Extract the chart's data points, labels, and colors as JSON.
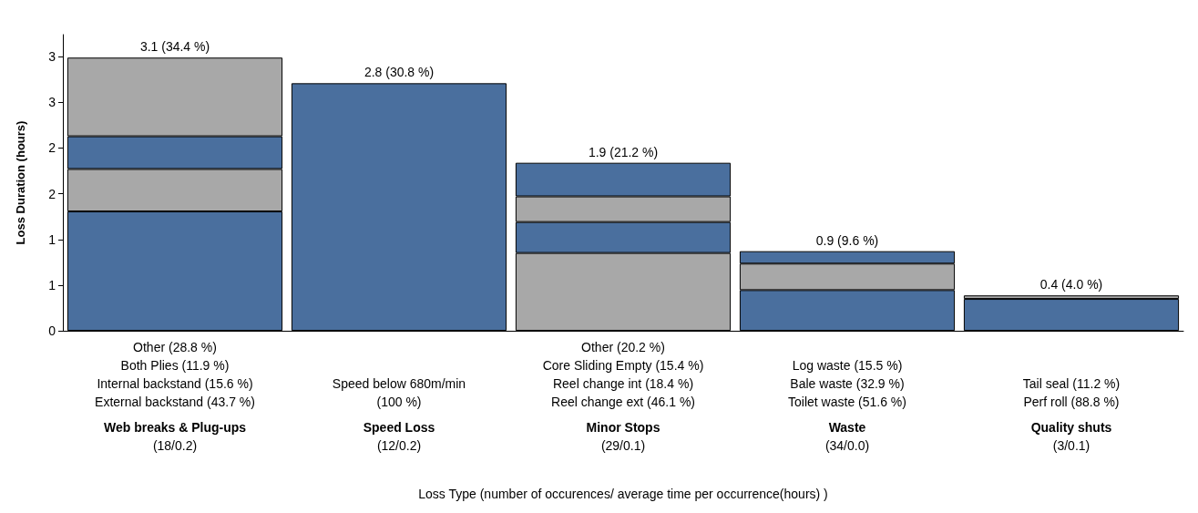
{
  "chart_data": {
    "type": "bar",
    "stacked": true,
    "ylabel": "Loss Duration (hours)",
    "xlabel": "Loss Type (number of occurences/ average time per occurrence(hours) )",
    "categories": [
      "Web breaks & Plug-ups\n(18/0.2)",
      "Speed Loss\n(12/0.2)",
      "Minor Stops\n(29/0.1)",
      "Waste\n(34/0.0)",
      "Quality shuts\n(3/0.1)"
    ],
    "series": [
      {
        "values": [
          1.35,
          2.8,
          0.88,
          0.46,
          0.36
        ],
        "colors": [
          "#4a6f9e",
          "#4a6f9e",
          "#a8a8a8",
          "#4a6f9e",
          "#4a6f9e"
        ]
      },
      {
        "values": [
          0.48,
          null,
          0.35,
          0.3,
          0.04
        ],
        "colors": [
          "#a8a8a8",
          null,
          "#4a6f9e",
          "#a8a8a8",
          "#a8a8a8"
        ]
      },
      {
        "values": [
          0.37,
          null,
          0.29,
          0.14,
          null
        ],
        "colors": [
          "#4a6f9e",
          null,
          "#a8a8a8",
          "#4a6f9e",
          null
        ]
      },
      {
        "values": [
          0.89,
          null,
          0.38,
          null,
          null
        ],
        "colors": [
          "#a8a8a8",
          null,
          "#4a6f9e",
          null,
          null
        ]
      }
    ],
    "totals": [
      "3.1 (34.4 %)",
      "2.8 (30.8 %)",
      "1.9 (21.2 %)",
      "0.9 (9.6 %)",
      "0.4 (4.0 %)"
    ],
    "annotations": [
      "Other (28.8 %)\nBoth Plies (11.9 %)\nInternal backstand (15.6 %)\nExternal backstand (43.7 %)",
      "Speed below 680m/min\n(100 %)",
      "Other (20.2 %)\nCore Sliding Empty (15.4 %)\nReel change int (18.4 %)\nReel change ext (46.1 %)",
      "Log waste (15.5 %)\nBale waste (32.9 %)\nToilet waste (51.6 %)",
      "Tail seal (11.2 %)\nPerf roll (88.8 %)"
    ],
    "ylim": [
      0,
      3.35
    ],
    "yticks": [
      0,
      {
        "value": 0.517,
        "label": "1"
      },
      {
        "value": 1.033,
        "label": "1"
      },
      {
        "value": 1.55,
        "label": "2"
      },
      {
        "value": 2.067,
        "label": "2"
      },
      {
        "value": 2.583,
        "label": "3"
      },
      {
        "value": 3.1,
        "label": "3"
      }
    ],
    "grid": false
  }
}
